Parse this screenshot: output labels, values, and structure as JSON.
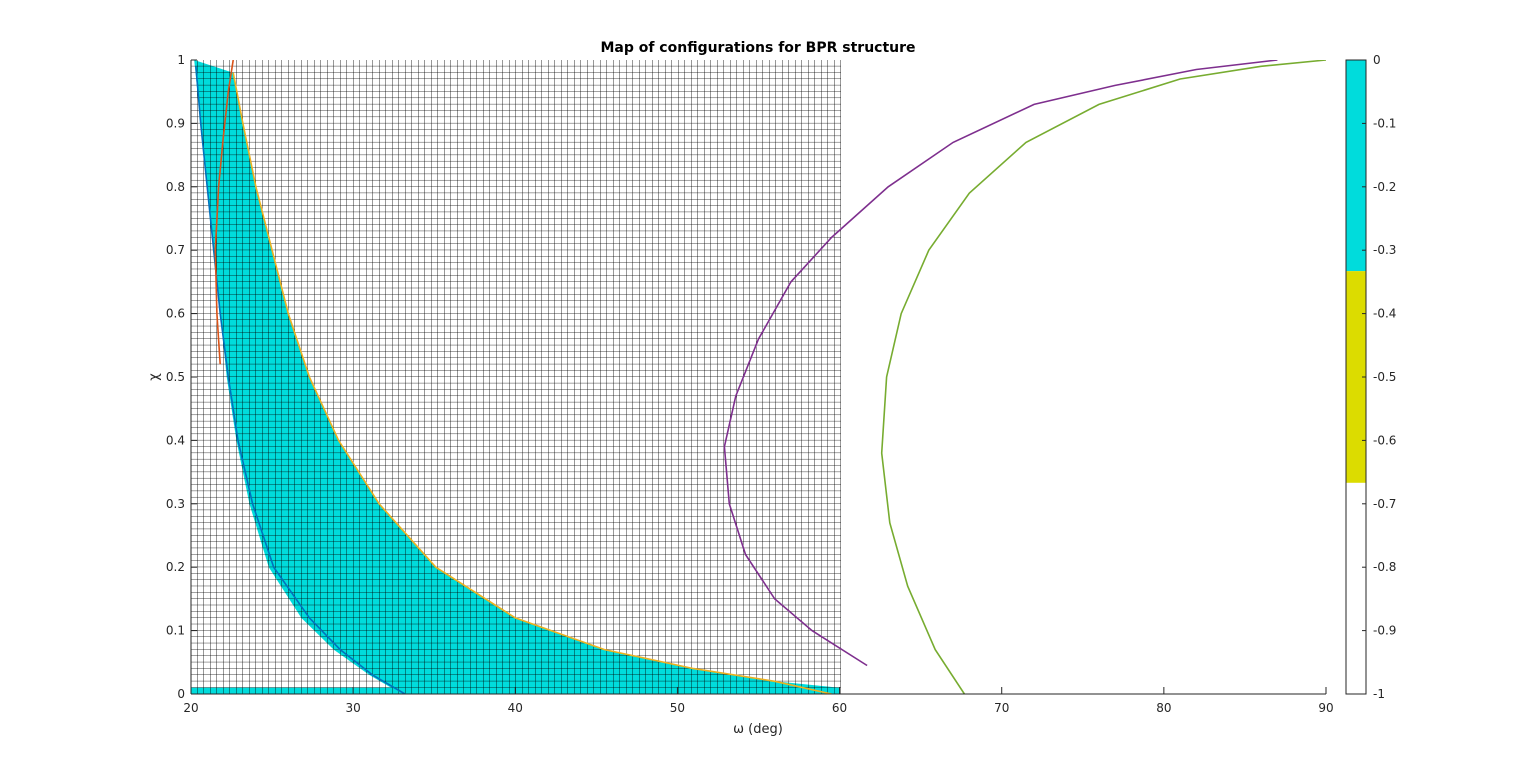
{
  "chart_data": {
    "type": "heatmap",
    "title": "Map of configurations for BPR structure",
    "xlabel": "ω (deg)",
    "ylabel": "χ",
    "xlim": [
      20,
      90
    ],
    "ylim": [
      0,
      1
    ],
    "grid_region": {
      "x": [
        20,
        60
      ],
      "y": [
        0,
        1
      ]
    },
    "x_ticks": [
      "20",
      "30",
      "40",
      "50",
      "60",
      "70",
      "80",
      "90"
    ],
    "y_ticks": [
      "0",
      "0.1",
      "0.2",
      "0.3",
      "0.4",
      "0.5",
      "0.6",
      "0.7",
      "0.8",
      "0.9",
      "1"
    ],
    "colorbar": {
      "range": [
        -1,
        0
      ],
      "ticks": [
        "0",
        "-0.1",
        "-0.2",
        "-0.3",
        "-0.4",
        "-0.5",
        "-0.6",
        "-0.7",
        "-0.8",
        "-0.9",
        "-1"
      ],
      "bands": [
        {
          "from": -0.333,
          "to": 0,
          "color": "#00dcdc"
        },
        {
          "from": -0.667,
          "to": -0.333,
          "color": "#dcdc00"
        },
        {
          "from": -1,
          "to": -0.667,
          "color": "#ffffff"
        }
      ]
    },
    "fill_color": "#00dcdc",
    "feasible_region": {
      "lower_bound": [
        [
          20.2,
          1.0
        ],
        [
          20.6,
          0.9
        ],
        [
          21.0,
          0.8
        ],
        [
          21.4,
          0.7
        ],
        [
          21.8,
          0.6
        ],
        [
          22.2,
          0.5
        ],
        [
          22.8,
          0.4
        ],
        [
          23.6,
          0.3
        ],
        [
          24.8,
          0.2
        ],
        [
          26.8,
          0.12
        ],
        [
          28.8,
          0.07
        ],
        [
          31.0,
          0.03
        ],
        [
          33.0,
          0.0
        ]
      ],
      "upper_bound": [
        [
          22.6,
          0.98
        ],
        [
          23.2,
          0.9
        ],
        [
          24.0,
          0.8
        ],
        [
          25.0,
          0.7
        ],
        [
          26.0,
          0.6
        ],
        [
          27.3,
          0.5
        ],
        [
          29.1,
          0.4
        ],
        [
          31.6,
          0.3
        ],
        [
          35.1,
          0.2
        ],
        [
          40.0,
          0.12
        ],
        [
          45.5,
          0.07
        ],
        [
          51.0,
          0.04
        ],
        [
          56.0,
          0.02
        ],
        [
          60.0,
          0.01
        ]
      ],
      "bottom_row_filled": true
    },
    "series": [
      {
        "color": "#0072bd",
        "points": [
          [
            20.3,
            0.99
          ],
          [
            20.6,
            0.9
          ],
          [
            21.0,
            0.8
          ],
          [
            21.4,
            0.7
          ],
          [
            21.8,
            0.6
          ],
          [
            22.3,
            0.5
          ],
          [
            22.9,
            0.4
          ],
          [
            23.8,
            0.3
          ],
          [
            25.1,
            0.2
          ],
          [
            27.3,
            0.12
          ],
          [
            29.2,
            0.07
          ],
          [
            31.2,
            0.03
          ],
          [
            33.2,
            0.0
          ]
        ]
      },
      {
        "color": "#d95319",
        "points": [
          [
            22.6,
            1.0
          ],
          [
            22.3,
            0.95
          ],
          [
            22.0,
            0.88
          ],
          [
            21.7,
            0.8
          ],
          [
            21.5,
            0.7
          ],
          [
            21.6,
            0.6
          ],
          [
            21.8,
            0.52
          ]
        ]
      },
      {
        "color": "#edb120",
        "points": [
          [
            22.6,
            0.98
          ],
          [
            23.2,
            0.9
          ],
          [
            24.0,
            0.8
          ],
          [
            25.0,
            0.7
          ],
          [
            26.0,
            0.6
          ],
          [
            27.3,
            0.5
          ],
          [
            29.1,
            0.4
          ],
          [
            31.6,
            0.3
          ],
          [
            35.1,
            0.2
          ],
          [
            40.0,
            0.12
          ],
          [
            45.5,
            0.07
          ],
          [
            51.0,
            0.04
          ],
          [
            56.0,
            0.02
          ],
          [
            59.5,
            0.0
          ]
        ]
      },
      {
        "color": "#7e2f8e",
        "points": [
          [
            87.0,
            1.0
          ],
          [
            82.0,
            0.985
          ],
          [
            77.0,
            0.96
          ],
          [
            72.0,
            0.93
          ],
          [
            67.0,
            0.87
          ],
          [
            63.0,
            0.8
          ],
          [
            59.5,
            0.72
          ],
          [
            57.0,
            0.65
          ],
          [
            55.0,
            0.56
          ],
          [
            53.6,
            0.47
          ],
          [
            52.9,
            0.39
          ],
          [
            53.2,
            0.3
          ],
          [
            54.2,
            0.22
          ],
          [
            56.0,
            0.15
          ],
          [
            58.3,
            0.1
          ],
          [
            61.7,
            0.045
          ]
        ]
      },
      {
        "color": "#77ac30",
        "points": [
          [
            90.0,
            1.0
          ],
          [
            86.0,
            0.99
          ],
          [
            81.0,
            0.97
          ],
          [
            76.0,
            0.93
          ],
          [
            71.5,
            0.87
          ],
          [
            68.0,
            0.79
          ],
          [
            65.5,
            0.7
          ],
          [
            63.8,
            0.6
          ],
          [
            62.9,
            0.5
          ],
          [
            62.6,
            0.38
          ],
          [
            63.1,
            0.27
          ],
          [
            64.2,
            0.17
          ],
          [
            65.9,
            0.07
          ],
          [
            67.7,
            0.0
          ]
        ]
      }
    ]
  }
}
